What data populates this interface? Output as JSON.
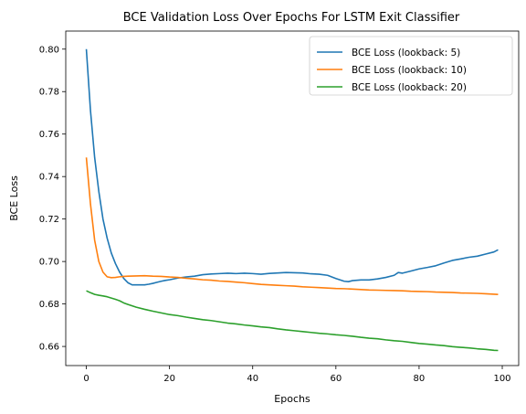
{
  "chart_data": {
    "type": "line",
    "title": "BCE Validation Loss Over Epochs For LSTM Exit Classifier",
    "xlabel": "Epochs",
    "ylabel": "BCE Loss",
    "xlim": [
      -4.95,
      103.95
    ],
    "ylim": [
      0.651,
      0.8085
    ],
    "xticks": [
      0,
      20,
      40,
      60,
      80,
      100
    ],
    "yticks": [
      0.66,
      0.68,
      0.7,
      0.72,
      0.74,
      0.76,
      0.78,
      0.8
    ],
    "xtick_labels": [
      "0",
      "20",
      "40",
      "60",
      "80",
      "100"
    ],
    "ytick_labels": [
      "0.66",
      "0.68",
      "0.70",
      "0.72",
      "0.74",
      "0.76",
      "0.78",
      "0.80"
    ],
    "grid": false,
    "legend_position": "upper-right",
    "series": [
      {
        "name": "BCE Loss (lookback: 5)",
        "color": "#1f77b4",
        "points": [
          [
            0,
            0.8
          ],
          [
            1,
            0.771
          ],
          [
            2,
            0.749
          ],
          [
            3,
            0.733
          ],
          [
            4,
            0.72
          ],
          [
            5,
            0.711
          ],
          [
            6,
            0.704
          ],
          [
            7,
            0.699
          ],
          [
            8,
            0.695
          ],
          [
            9,
            0.692
          ],
          [
            10,
            0.69
          ],
          [
            11,
            0.689
          ],
          [
            12,
            0.689
          ],
          [
            13,
            0.689
          ],
          [
            14,
            0.689
          ],
          [
            15,
            0.6893
          ],
          [
            16,
            0.6897
          ],
          [
            17,
            0.6902
          ],
          [
            18,
            0.6907
          ],
          [
            19,
            0.6911
          ],
          [
            20,
            0.6914
          ],
          [
            22,
            0.6922
          ],
          [
            24,
            0.6927
          ],
          [
            26,
            0.6931
          ],
          [
            28,
            0.6938
          ],
          [
            30,
            0.6941
          ],
          [
            32,
            0.6943
          ],
          [
            34,
            0.6945
          ],
          [
            36,
            0.6943
          ],
          [
            38,
            0.6945
          ],
          [
            40,
            0.6943
          ],
          [
            42,
            0.694
          ],
          [
            44,
            0.6944
          ],
          [
            46,
            0.6946
          ],
          [
            48,
            0.6948
          ],
          [
            50,
            0.6947
          ],
          [
            52,
            0.6946
          ],
          [
            54,
            0.6942
          ],
          [
            56,
            0.694
          ],
          [
            58,
            0.6935
          ],
          [
            60,
            0.692
          ],
          [
            62,
            0.6907
          ],
          [
            63,
            0.6905
          ],
          [
            64,
            0.691
          ],
          [
            66,
            0.6913
          ],
          [
            68,
            0.6913
          ],
          [
            70,
            0.6918
          ],
          [
            72,
            0.6925
          ],
          [
            74,
            0.6935
          ],
          [
            75,
            0.6948
          ],
          [
            76,
            0.6945
          ],
          [
            78,
            0.6955
          ],
          [
            80,
            0.6965
          ],
          [
            82,
            0.6972
          ],
          [
            84,
            0.698
          ],
          [
            86,
            0.6993
          ],
          [
            88,
            0.7005
          ],
          [
            90,
            0.7012
          ],
          [
            92,
            0.702
          ],
          [
            94,
            0.7025
          ],
          [
            96,
            0.7035
          ],
          [
            98,
            0.7045
          ],
          [
            99,
            0.7055
          ]
        ]
      },
      {
        "name": "BCE Loss (lookback: 10)",
        "color": "#ff7f0e",
        "points": [
          [
            0,
            0.749
          ],
          [
            1,
            0.727
          ],
          [
            2,
            0.71
          ],
          [
            3,
            0.7
          ],
          [
            4,
            0.695
          ],
          [
            5,
            0.6928
          ],
          [
            6,
            0.6924
          ],
          [
            7,
            0.6925
          ],
          [
            8,
            0.6928
          ],
          [
            9,
            0.693
          ],
          [
            10,
            0.6931
          ],
          [
            12,
            0.6932
          ],
          [
            14,
            0.6933
          ],
          [
            16,
            0.6931
          ],
          [
            18,
            0.693
          ],
          [
            20,
            0.6927
          ],
          [
            22,
            0.6925
          ],
          [
            24,
            0.6921
          ],
          [
            26,
            0.6918
          ],
          [
            28,
            0.6914
          ],
          [
            30,
            0.6912
          ],
          [
            32,
            0.6908
          ],
          [
            34,
            0.6906
          ],
          [
            36,
            0.6903
          ],
          [
            38,
            0.69
          ],
          [
            40,
            0.6896
          ],
          [
            42,
            0.6892
          ],
          [
            44,
            0.689
          ],
          [
            46,
            0.6888
          ],
          [
            48,
            0.6886
          ],
          [
            50,
            0.6884
          ],
          [
            52,
            0.6881
          ],
          [
            54,
            0.6879
          ],
          [
            56,
            0.6877
          ],
          [
            58,
            0.6875
          ],
          [
            60,
            0.6873
          ],
          [
            62,
            0.6872
          ],
          [
            64,
            0.687
          ],
          [
            66,
            0.6868
          ],
          [
            68,
            0.6866
          ],
          [
            70,
            0.6865
          ],
          [
            72,
            0.6864
          ],
          [
            74,
            0.6863
          ],
          [
            76,
            0.6862
          ],
          [
            78,
            0.686
          ],
          [
            80,
            0.6859
          ],
          [
            82,
            0.6858
          ],
          [
            84,
            0.6856
          ],
          [
            86,
            0.6855
          ],
          [
            88,
            0.6854
          ],
          [
            90,
            0.6852
          ],
          [
            92,
            0.6851
          ],
          [
            94,
            0.685
          ],
          [
            96,
            0.6848
          ],
          [
            98,
            0.6846
          ],
          [
            99,
            0.6845
          ]
        ]
      },
      {
        "name": "BCE Loss (lookback: 20)",
        "color": "#2ca02c",
        "points": [
          [
            0,
            0.6862
          ],
          [
            1,
            0.6853
          ],
          [
            2,
            0.6845
          ],
          [
            3,
            0.6841
          ],
          [
            4,
            0.6838
          ],
          [
            5,
            0.6834
          ],
          [
            6,
            0.6828
          ],
          [
            7,
            0.6822
          ],
          [
            8,
            0.6815
          ],
          [
            9,
            0.6805
          ],
          [
            10,
            0.6798
          ],
          [
            12,
            0.6785
          ],
          [
            14,
            0.6775
          ],
          [
            16,
            0.6766
          ],
          [
            18,
            0.6758
          ],
          [
            20,
            0.675
          ],
          [
            22,
            0.6745
          ],
          [
            24,
            0.6738
          ],
          [
            26,
            0.6732
          ],
          [
            28,
            0.6726
          ],
          [
            30,
            0.6722
          ],
          [
            32,
            0.6716
          ],
          [
            34,
            0.671
          ],
          [
            36,
            0.6706
          ],
          [
            38,
            0.6701
          ],
          [
            40,
            0.6697
          ],
          [
            42,
            0.6692
          ],
          [
            44,
            0.6689
          ],
          [
            46,
            0.6683
          ],
          [
            48,
            0.6678
          ],
          [
            50,
            0.6674
          ],
          [
            52,
            0.667
          ],
          [
            54,
            0.6666
          ],
          [
            56,
            0.6662
          ],
          [
            58,
            0.6659
          ],
          [
            60,
            0.6655
          ],
          [
            62,
            0.6652
          ],
          [
            64,
            0.6648
          ],
          [
            66,
            0.6643
          ],
          [
            68,
            0.6639
          ],
          [
            70,
            0.6636
          ],
          [
            72,
            0.6631
          ],
          [
            74,
            0.6627
          ],
          [
            76,
            0.6624
          ],
          [
            78,
            0.6619
          ],
          [
            80,
            0.6614
          ],
          [
            82,
            0.6611
          ],
          [
            84,
            0.6607
          ],
          [
            86,
            0.6604
          ],
          [
            88,
            0.6599
          ],
          [
            90,
            0.6596
          ],
          [
            92,
            0.6593
          ],
          [
            94,
            0.6589
          ],
          [
            96,
            0.6586
          ],
          [
            98,
            0.6582
          ],
          [
            99,
            0.6581
          ]
        ]
      }
    ]
  }
}
